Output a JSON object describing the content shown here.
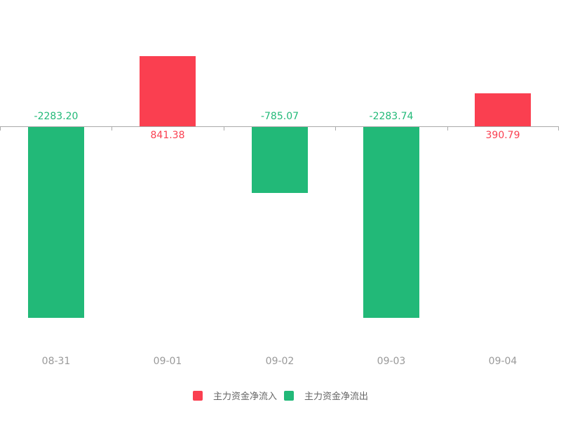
{
  "chart_data": {
    "type": "bar",
    "categories": [
      "08-31",
      "09-01",
      "09-02",
      "09-03",
      "09-04"
    ],
    "values": [
      -2283.2,
      841.38,
      -785.07,
      -2283.74,
      390.79
    ],
    "value_labels": [
      "-2283.20",
      "841.38",
      "-785.07",
      "-2283.74",
      "390.79"
    ],
    "series": [
      {
        "name": "主力资金净流入",
        "rule": "positive values",
        "color": "#fa3f50"
      },
      {
        "name": "主力资金净流出",
        "rule": "negative values",
        "color": "#22b978"
      }
    ],
    "legend": [
      {
        "label": "主力资金净流入",
        "color": "#fa3f50"
      },
      {
        "label": "主力资金净流出",
        "color": "#22b978"
      }
    ],
    "colors": {
      "inflow": "#fa3f50",
      "outflow": "#22b978",
      "axis": "#aaaaaa",
      "axis_label": "#999999",
      "legend_text": "#666666"
    },
    "grid": false,
    "legend_position": "bottom",
    "baseline": 0
  }
}
